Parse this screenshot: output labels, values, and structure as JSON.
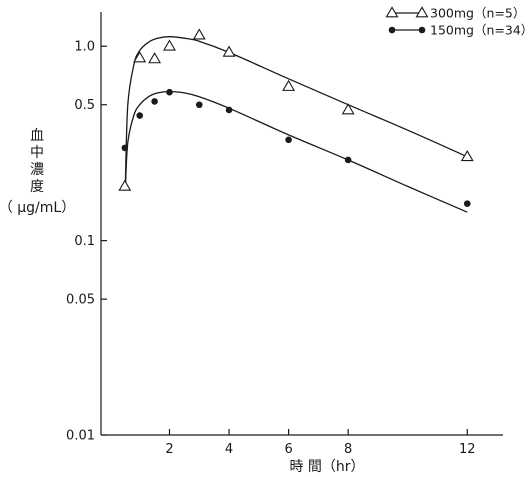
{
  "chart_data": {
    "type": "scatter",
    "title": "",
    "xlabel": "時 間（hr）",
    "ylabel_lines": [
      "血",
      "中",
      "濃",
      "度",
      "（ μg/mL）"
    ],
    "x_scale": "linear",
    "y_scale": "log",
    "xlim": [
      -0.3,
      13.2
    ],
    "ylim": [
      0.01,
      1.5
    ],
    "x_ticks": [
      2,
      4,
      6,
      8,
      12
    ],
    "x_tick_labels": [
      "2",
      "4",
      "6",
      "8",
      "12"
    ],
    "y_ticks": [
      0.01,
      0.05,
      0.1,
      0.5,
      1.0
    ],
    "y_tick_labels": [
      "0.01",
      "0.05",
      "0.1",
      "0.5",
      "1.0"
    ],
    "grid": false,
    "legend_position": "top-right",
    "series": [
      {
        "name": "300mg（n=5）",
        "marker": "open-triangle",
        "color": "#1a1a1a",
        "x": [
          0.5,
          1,
          1.5,
          2,
          3,
          4,
          6,
          8,
          12
        ],
        "y": [
          0.19,
          0.87,
          0.86,
          1.0,
          1.14,
          0.93,
          0.62,
          0.47,
          0.27
        ],
        "fit_x": [
          0.52,
          0.6,
          0.8,
          1.0,
          1.3,
          1.6,
          2.0,
          2.5,
          3.0,
          4.0,
          6.0,
          8.0,
          10.0,
          12.0
        ],
        "fit_y": [
          0.2,
          0.5,
          0.8,
          0.95,
          1.05,
          1.1,
          1.12,
          1.1,
          1.06,
          0.93,
          0.68,
          0.5,
          0.37,
          0.27
        ]
      },
      {
        "name": "150mg（n=34）",
        "marker": "filled-circle",
        "color": "#1a1a1a",
        "x": [
          0.5,
          1,
          1.5,
          2,
          3,
          4,
          6,
          8,
          12
        ],
        "y": [
          0.3,
          0.44,
          0.52,
          0.58,
          0.5,
          0.47,
          0.33,
          0.26,
          0.155
        ],
        "fit_x": [
          0.52,
          0.6,
          0.8,
          1.0,
          1.3,
          1.6,
          2.0,
          2.5,
          3.0,
          4.0,
          6.0,
          8.0,
          10.0,
          12.0
        ],
        "fit_y": [
          0.19,
          0.32,
          0.44,
          0.5,
          0.55,
          0.575,
          0.585,
          0.575,
          0.55,
          0.48,
          0.35,
          0.26,
          0.19,
          0.14
        ]
      }
    ]
  }
}
